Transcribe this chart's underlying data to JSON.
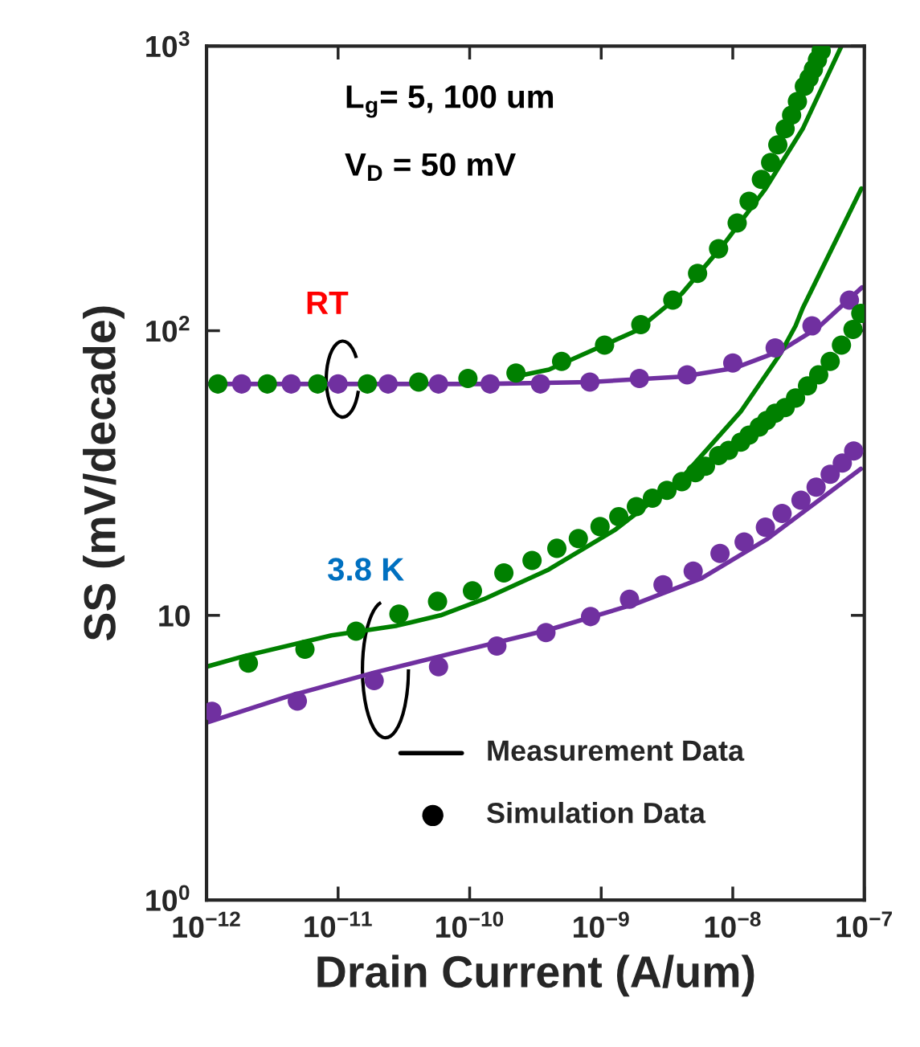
{
  "chart_data": {
    "type": "scatter",
    "xlabel": "Drain Current (A/um)",
    "ylabel": "SS (mV/decade)",
    "log": "xy",
    "xlim": [
      1e-12,
      1e-07
    ],
    "ylim": [
      1,
      1000
    ],
    "xticks": [
      {
        "value": 1e-12,
        "label": "10$^{−12}$"
      },
      {
        "value": 1e-11,
        "label": "10$^{−11}$"
      },
      {
        "value": 1e-10,
        "label": "10$^{−10}$"
      },
      {
        "value": 1e-09,
        "label": "10$^{−9}$"
      },
      {
        "value": 1e-08,
        "label": "10$^{−8}$"
      },
      {
        "value": 1e-07,
        "label": "10$^{−7}$"
      }
    ],
    "yticks": [
      {
        "value": 1,
        "label": "10$^{0}$"
      },
      10,
      {
        "value": 100,
        "label": "10$^{2}$"
      },
      {
        "value": 1000,
        "label": "10$^{3}$"
      }
    ],
    "grid": false,
    "annotations": [
      "L$_{g}$= 5, 100 um",
      "V$_{D}$ = 50 mV",
      "RT",
      "3.8 K",
      "Measurement Data",
      "Simulation Data"
    ],
    "series": [
      {
        "type": "line",
        "color": "#008000",
        "x": [
          2.2e-10,
          4e-10,
          1.85e-09,
          4.1e-09,
          8.6e-09,
          1.77e-08,
          3.4e-08,
          6.7e-08
        ],
        "values": [
          69,
          73,
          100,
          135,
          202,
          315,
          512,
          1000
        ]
      },
      {
        "type": "line",
        "color": "#7030a0",
        "x": [
          1e-12,
          1.2e-10,
          8.2e-10,
          4.1e-09,
          1.04e-08,
          2.3e-08,
          4.5e-08,
          9.6e-08
        ],
        "values": [
          65,
          65,
          66,
          69,
          74,
          85,
          103,
          142
        ]
      },
      {
        "type": "line",
        "color": "#7030a0",
        "x": [
          1e-12,
          4.2e-12,
          1.9e-11,
          8.7e-11,
          4e-10,
          1.85e-09,
          5.8e-09,
          1.81e-08,
          9.4e-08
        ],
        "values": [
          4.2,
          5.2,
          6.3,
          7.5,
          8.9,
          11.0,
          13.5,
          18.5,
          32.7
        ]
      },
      {
        "type": "line",
        "color": "#008000",
        "x": [
          1e-12,
          1.95e-12,
          8.9e-12,
          2.8e-11,
          6e-11,
          1.28e-10,
          4e-10,
          1.26e-09,
          3.96e-09,
          1.15e-08,
          2.3e-08,
          3e-08,
          3.4e-08,
          9.5e-08
        ],
        "values": [
          6.6,
          7.2,
          8.5,
          9.2,
          10,
          11.4,
          14.5,
          19.9,
          29.9,
          52,
          83,
          104,
          120,
          316
        ]
      },
      {
        "marker": "circle",
        "color": "#7030a0",
        "x": [
          1.85e-12,
          4.4e-12,
          1e-11,
          2.4e-11,
          5.8e-11,
          1.43e-10,
          3.45e-10,
          8.2e-10,
          1.95e-09,
          4.5e-09,
          1e-08,
          2.1e-08,
          4e-08,
          7.7e-08
        ],
        "values": [
          65,
          65,
          65,
          65,
          65,
          65,
          65,
          66,
          68,
          70,
          77,
          87,
          104,
          128
        ]
      },
      {
        "marker": "circle",
        "color": "#008000",
        "x": [
          1.22e-12,
          2.9e-12,
          7e-12,
          1.67e-11,
          4.1e-11,
          9.7e-11,
          2.25e-10,
          5e-10,
          1.06e-09,
          2e-09,
          3.5e-09,
          5.4e-09,
          7.8e-09,
          1.08e-08,
          1.33e-08,
          1.65e-08,
          1.94e-08,
          2.2e-08,
          2.5e-08,
          2.8e-08,
          3.1e-08,
          3.5e-08,
          3.8e-08,
          4.1e-08,
          4.4e-08,
          4.7e-08
        ],
        "values": [
          65,
          65,
          65,
          65,
          66,
          68,
          71,
          78,
          89,
          105,
          128,
          159,
          194,
          239,
          285,
          340,
          390,
          450,
          512,
          572,
          639,
          722,
          771,
          829,
          895,
          962
        ]
      },
      {
        "marker": "circle",
        "color": "#7030a0",
        "x": [
          1.1e-12,
          4.9e-12,
          1.88e-11,
          5.8e-11,
          1.61e-10,
          3.8e-10,
          8.3e-10,
          1.64e-09,
          2.95e-09,
          5e-09,
          8e-09,
          1.22e-08,
          1.77e-08,
          2.37e-08,
          3.3e-08,
          4.3e-08,
          5.5e-08,
          6.8e-08,
          8.3e-08
        ],
        "values": [
          4.6,
          5.0,
          5.9,
          6.6,
          7.8,
          8.7,
          9.9,
          11.4,
          12.8,
          14.3,
          16.5,
          18.1,
          20.4,
          22.8,
          25.4,
          28.2,
          31.3,
          34.3,
          37.8
        ]
      },
      {
        "marker": "circle",
        "color": "#008000",
        "x": [
          2.08e-12,
          5.6e-12,
          1.37e-11,
          2.9e-11,
          5.7e-11,
          1.05e-10,
          1.82e-10,
          2.98e-10,
          4.6e-10,
          6.7e-10,
          9.8e-10,
          1.36e-09,
          1.85e-09,
          2.45e-09,
          3.16e-09,
          4.1e-09,
          5.2e-09,
          6.2e-09,
          7.8e-09,
          9.3e-09,
          1.15e-08,
          1.33e-08,
          1.59e-08,
          1.81e-08,
          2.1e-08,
          2.5e-08,
          3e-08,
          3.7e-08,
          4.5e-08,
          5.5e-08,
          6.7e-08,
          8.2e-08,
          9.4e-08
        ],
        "values": [
          6.8,
          7.6,
          8.8,
          10.1,
          11.2,
          12.2,
          14.1,
          15.6,
          17.2,
          18.6,
          20.5,
          22.2,
          24.1,
          25.8,
          27.5,
          29.5,
          31.7,
          33.4,
          36.4,
          38.0,
          40.6,
          43.0,
          45.9,
          48.4,
          51.3,
          53.7,
          58,
          64,
          70,
          78,
          89,
          101,
          115
        ]
      }
    ]
  }
}
